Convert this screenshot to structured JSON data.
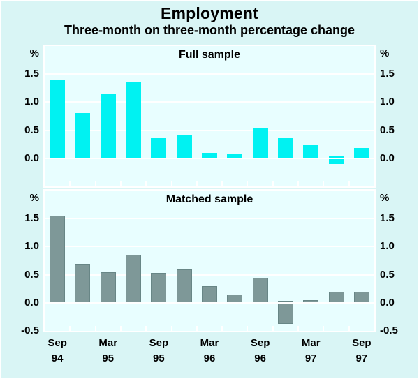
{
  "title": "Employment",
  "subtitle": "Three-month on three-month percentage change",
  "unit_symbol": "%",
  "colors": {
    "figure_background": "#d9f5f5",
    "plot_background": "#e8feff",
    "gridline": "#ffffff",
    "full_sample_bar": "#00f2f2",
    "matched_sample_bar": "#7e9898",
    "matched_sample_bar_border": "#688686",
    "text": "#000000"
  },
  "chart_data": [
    {
      "type": "bar",
      "title": "Full sample",
      "ylabel": "%",
      "ylim": [
        -0.5,
        2.0
      ],
      "grid": true,
      "ytick_values": [
        1.5,
        1.0,
        0.5,
        0.0
      ],
      "ytick_labels": [
        "1.5",
        "1.0",
        "0.5",
        "0.0"
      ],
      "values": [
        1.4,
        0.81,
        1.15,
        1.37,
        0.37,
        0.42,
        0.1,
        0.08,
        0.53,
        0.37,
        0.24,
        -0.1,
        0.18
      ]
    },
    {
      "type": "bar",
      "title": "Matched sample",
      "ylabel": "%",
      "ylim": [
        -0.5,
        2.0
      ],
      "grid": true,
      "ytick_values": [
        1.5,
        1.0,
        0.5,
        0.0,
        -0.5
      ],
      "ytick_labels": [
        "1.5",
        "1.0",
        "0.5",
        "0.0",
        "-0.5"
      ],
      "values": [
        1.55,
        0.7,
        0.55,
        0.86,
        0.53,
        0.59,
        0.3,
        0.15,
        0.45,
        -0.37,
        0.05,
        0.2,
        0.2
      ]
    }
  ],
  "x_axis": {
    "num_bars": 13,
    "tick_labels": [
      {
        "month": "Sep",
        "year": "94",
        "slot": 0
      },
      {
        "month": "Mar",
        "year": "95",
        "slot": 2
      },
      {
        "month": "Sep",
        "year": "95",
        "slot": 4
      },
      {
        "month": "Mar",
        "year": "96",
        "slot": 6
      },
      {
        "month": "Sep",
        "year": "96",
        "slot": 8
      },
      {
        "month": "Mar",
        "year": "97",
        "slot": 10
      },
      {
        "month": "Sep",
        "year": "97",
        "slot": 12
      }
    ]
  }
}
